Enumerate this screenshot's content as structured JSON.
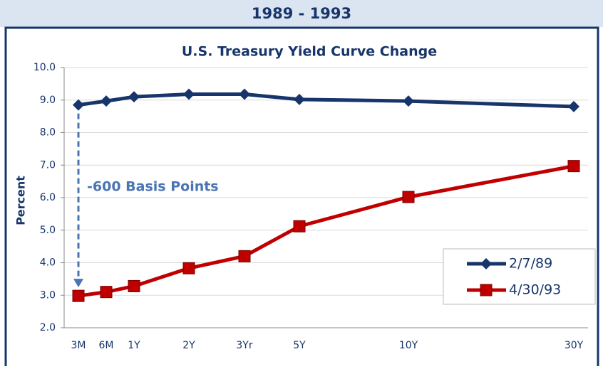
{
  "header": {
    "title": "1989 - 1993"
  },
  "chart_data": {
    "type": "line",
    "title": "U.S. Treasury Yield Curve Change",
    "y_label": "Percent",
    "annotation": "-600 Basis Points",
    "categories": [
      "3M",
      "6M",
      "1Y",
      "2Y",
      "3Yr",
      "5Y",
      "10Y",
      "30Y"
    ],
    "series": [
      {
        "name": "2/7/89",
        "color": "#17356b",
        "marker": "diamond",
        "values": [
          8.85,
          8.97,
          9.1,
          9.18,
          9.18,
          9.02,
          8.97,
          8.8
        ]
      },
      {
        "name": "4/30/93",
        "color": "#c00000",
        "marker": "square",
        "values": [
          2.98,
          3.1,
          3.28,
          3.83,
          4.2,
          5.12,
          6.02,
          6.97
        ]
      }
    ],
    "ylim": [
      2,
      10
    ],
    "yticks": [
      {
        "value": 2,
        "label": "2.0"
      },
      {
        "value": 3,
        "label": "3.0"
      },
      {
        "value": 4,
        "label": "4.0"
      },
      {
        "value": 5,
        "label": "5.0"
      },
      {
        "value": 6,
        "label": "6.0"
      },
      {
        "value": 7,
        "label": "7.0"
      },
      {
        "value": 8,
        "label": "8.0"
      },
      {
        "value": 9,
        "label": "9.0"
      },
      {
        "value": 10,
        "label": "10.0"
      }
    ],
    "grid": true,
    "legend": "lower right"
  }
}
